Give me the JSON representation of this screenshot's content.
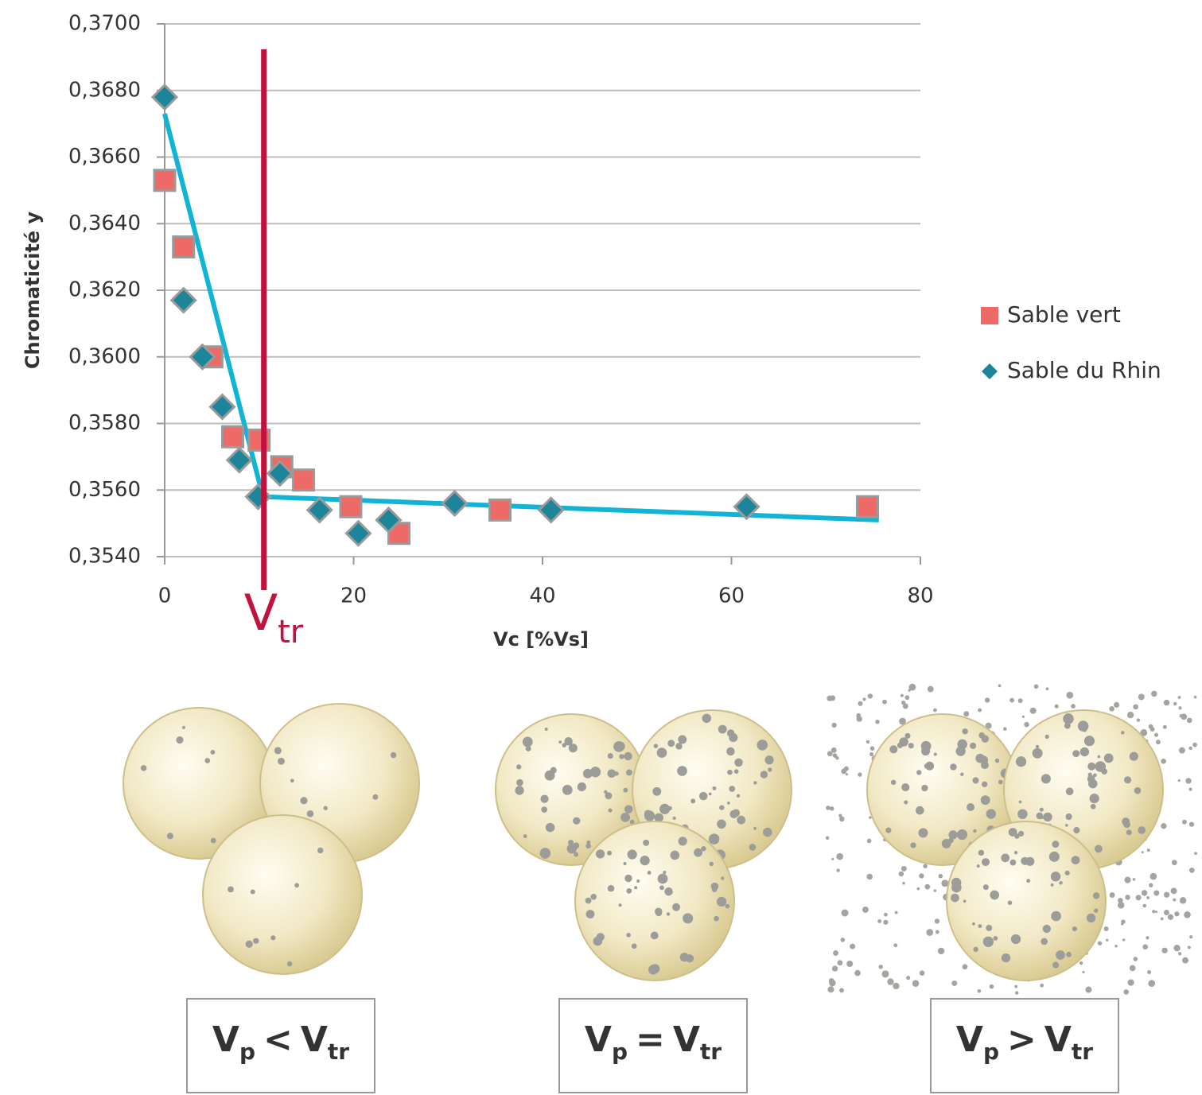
{
  "chart_data": {
    "type": "scatter",
    "x_label": "Vc [%Vs]",
    "y_label": "Chromaticité y",
    "xlim": [
      0,
      80
    ],
    "xticks": [
      0,
      20,
      40,
      60,
      80
    ],
    "ylim": [
      0.354,
      0.37
    ],
    "yticks": [
      {
        "value": 0.354,
        "label": "0,3540"
      },
      {
        "value": 0.356,
        "label": "0,3560"
      },
      {
        "value": 0.358,
        "label": "0,3580"
      },
      {
        "value": 0.36,
        "label": "0,3600"
      },
      {
        "value": 0.362,
        "label": "0,3620"
      },
      {
        "value": 0.364,
        "label": "0,3640"
      },
      {
        "value": 0.366,
        "label": "0,3660"
      },
      {
        "value": 0.368,
        "label": "0,3680"
      },
      {
        "value": 0.37,
        "label": "0,3700"
      }
    ],
    "grid": true,
    "legend": "right",
    "series": [
      {
        "name": "Sable vert",
        "marker": "square",
        "color": "#ee6a67",
        "x": [
          0,
          2,
          5,
          7.2,
          10,
          12.4,
          14.7,
          19.7,
          24.8,
          35.5,
          74.4
        ],
        "values": [
          0.3653,
          0.3633,
          0.36,
          0.3576,
          0.3575,
          0.3567,
          0.3563,
          0.3555,
          0.3547,
          0.3554,
          0.3555
        ]
      },
      {
        "name": "Sable du Rhin",
        "marker": "diamond",
        "color": "#1d8599",
        "x": [
          0,
          2,
          4,
          6.1,
          7.9,
          9.9,
          12.2,
          16.4,
          20.5,
          23.7,
          30.7,
          40.9,
          61.6
        ],
        "values": [
          0.3678,
          0.3617,
          0.36,
          0.3585,
          0.3569,
          0.3558,
          0.3565,
          0.3554,
          0.3547,
          0.3551,
          0.3556,
          0.3554,
          0.3555
        ]
      }
    ],
    "trend_line": {
      "color": "#12b4d6",
      "x": [
        0,
        10.4,
        75.6
      ],
      "values": [
        0.3673,
        0.3558,
        0.3551
      ]
    },
    "vtr": {
      "x": 10.5,
      "color": "#c0123c",
      "label": "V",
      "label_sub": "tr"
    }
  },
  "panels": [
    {
      "left": "V",
      "left_sub": "p",
      "operator": "<",
      "right": "V",
      "right_sub": "tr"
    },
    {
      "left": "V",
      "left_sub": "p",
      "operator": "=",
      "right": "V",
      "right_sub": "tr"
    },
    {
      "left": "V",
      "left_sub": "p",
      "operator": ">",
      "right": "V",
      "right_sub": "tr"
    }
  ]
}
